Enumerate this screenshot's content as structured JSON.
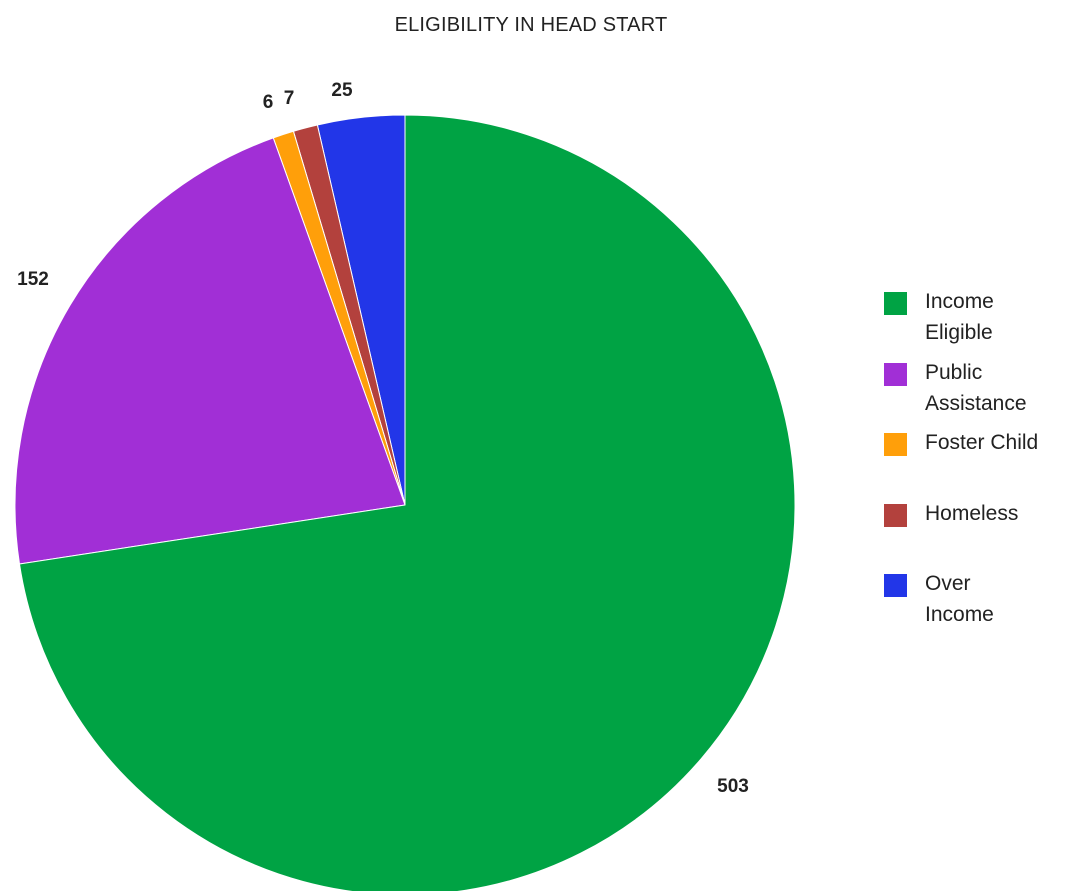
{
  "chart_data": {
    "type": "pie",
    "title": "ELIGIBILITY IN HEAD START",
    "categories": [
      "Income Eligible",
      "Public Assistance",
      "Foster Child",
      "Homeless",
      "Over Income"
    ],
    "values": [
      503,
      152,
      6,
      7,
      25
    ],
    "legend_labels": [
      [
        "Income",
        "Eligible"
      ],
      [
        "Public",
        "Assistance"
      ],
      [
        "Foster Child"
      ],
      [
        "Homeless"
      ],
      [
        "Over",
        "Income"
      ]
    ],
    "colors": [
      "#00a344",
      "#a12fd6",
      "#ff9f0a",
      "#b3413d",
      "#2236e8"
    ],
    "start_angle_deg": 0,
    "direction": "clockwise",
    "legend_position": "right",
    "show_data_labels": true
  }
}
